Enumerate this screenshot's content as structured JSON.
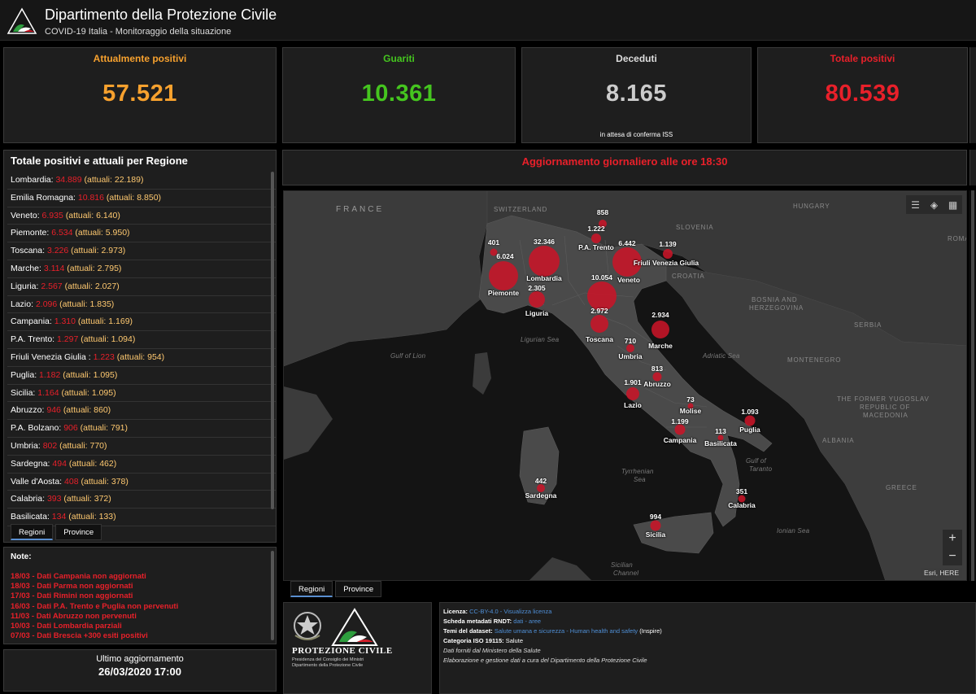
{
  "header": {
    "title": "Dipartimento della Protezione Civile",
    "subtitle": "COVID-19 Italia - Monitoraggio della situazione"
  },
  "kpis": [
    {
      "label": "Attualmente positivi",
      "value": "57.521",
      "note": "",
      "color": "#f7a12e"
    },
    {
      "label": "Guariti",
      "value": "10.361",
      "note": "",
      "color": "#45c51f"
    },
    {
      "label": "Deceduti",
      "value": "8.165",
      "note": "in attesa di conferma ISS",
      "color": "#cccccc"
    },
    {
      "label": "Totale positivi",
      "value": "80.539",
      "note": "",
      "color": "#e8202a"
    }
  ],
  "regions_panel": {
    "title": "Totale positivi e attuali per Regione",
    "rows": [
      {
        "name": "Lombardia:",
        "total": "34.889",
        "current": "(attuali: 22.189)"
      },
      {
        "name": "Emilia Romagna:",
        "total": "10.816",
        "current": "(attuali: 8.850)"
      },
      {
        "name": "Veneto:",
        "total": "6.935",
        "current": "(attuali: 6.140)"
      },
      {
        "name": "Piemonte:",
        "total": "6.534",
        "current": "(attuali: 5.950)"
      },
      {
        "name": "Toscana:",
        "total": "3.226",
        "current": "(attuali: 2.973)"
      },
      {
        "name": "Marche:",
        "total": "3.114",
        "current": "(attuali: 2.795)"
      },
      {
        "name": "Liguria:",
        "total": "2.567",
        "current": "(attuali: 2.027)"
      },
      {
        "name": "Lazio:",
        "total": "2.096",
        "current": "(attuali: 1.835)"
      },
      {
        "name": "Campania:",
        "total": "1.310",
        "current": "(attuali: 1.169)"
      },
      {
        "name": "P.A. Trento:",
        "total": "1.297",
        "current": "(attuali: 1.094)"
      },
      {
        "name": "Friuli Venezia Giulia :",
        "total": "1.223",
        "current": "(attuali: 954)"
      },
      {
        "name": "Puglia:",
        "total": "1.182",
        "current": "(attuali: 1.095)"
      },
      {
        "name": "Sicilia:",
        "total": "1.164",
        "current": "(attuali: 1.095)"
      },
      {
        "name": "Abruzzo:",
        "total": "946",
        "current": "(attuali: 860)"
      },
      {
        "name": "P.A. Bolzano:",
        "total": "906",
        "current": "(attuali: 791)"
      },
      {
        "name": "Umbria:",
        "total": "802",
        "current": "(attuali: 770)"
      },
      {
        "name": "Sardegna:",
        "total": "494",
        "current": "(attuali: 462)"
      },
      {
        "name": "Valle d'Aosta:",
        "total": "408",
        "current": "(attuali: 378)"
      },
      {
        "name": "Calabria:",
        "total": "393",
        "current": "(attuali: 372)"
      },
      {
        "name": "Basilicata:",
        "total": "134",
        "current": "(attuali: 133)"
      }
    ],
    "tabs": [
      "Regioni",
      "Province"
    ]
  },
  "notes": {
    "title": "Note:",
    "items": [
      "18/03 - Dati Campania non aggiornati",
      "18/03 - Dati Parma non aggiornati",
      "17/03 - Dati Rimini non aggiornati",
      "16/03 - Dati P.A. Trento e Puglia non pervenuti",
      "11/03 - Dati Abruzzo non pervenuti",
      "10/03 - Dati Lombardia parziali",
      "07/03 - Dati Brescia +300 esiti positivi"
    ]
  },
  "last_update": {
    "label": "Ultimo aggiornamento",
    "value": "26/03/2020 17:00"
  },
  "banner": {
    "text": "Aggiornamento giornaliero alle ore 18:30"
  },
  "map": {
    "tabs": [
      "Regioni",
      "Province"
    ],
    "attribution": "Esri, HERE",
    "zoom_in": "+",
    "zoom_out": "−",
    "geo_labels": [
      {
        "text": "FRANCE"
      },
      {
        "text": "SWITZERLAND"
      },
      {
        "text": "HUNGARY"
      },
      {
        "text": "SLOVENIA"
      },
      {
        "text": "CROATIA"
      },
      {
        "text": "BOSNIA AND"
      },
      {
        "text": "HERZEGOVINA"
      },
      {
        "text": "SERBIA"
      },
      {
        "text": "MONTENEGRO"
      },
      {
        "text": "THE FORMER YUGOSLAV"
      },
      {
        "text": "REPUBLIC OF"
      },
      {
        "text": "MACEDONIA"
      },
      {
        "text": "ALBANIA"
      },
      {
        "text": "GREECE"
      },
      {
        "text": "ROMA"
      },
      {
        "text": "Ligurian Sea"
      },
      {
        "text": "Gulf of Lion"
      },
      {
        "text": "Adriatic Sea"
      },
      {
        "text": "Tyrrhenian"
      },
      {
        "text": "Sea"
      },
      {
        "text": "Gulf of"
      },
      {
        "text": "Taranto"
      },
      {
        "text": "Ionian Sea"
      },
      {
        "text": "Sicilian"
      },
      {
        "text": "Channel"
      }
    ],
    "bubbles": [
      {
        "name": "",
        "value": "858"
      },
      {
        "name": "P.A. Trento",
        "value": "1.222"
      },
      {
        "name": "",
        "value": "401"
      },
      {
        "name": "Piemonte",
        "value": "6.024"
      },
      {
        "name": "Lombardia",
        "value": "32.346"
      },
      {
        "name": "Veneto",
        "value": "6.442"
      },
      {
        "name": "Friuli Venezia Giulia",
        "value": "1.139"
      },
      {
        "name": "Liguria",
        "value": "2.305"
      },
      {
        "name": "",
        "value": "10.054"
      },
      {
        "name": "Toscana",
        "value": "2.972"
      },
      {
        "name": "Marche",
        "value": "2.934"
      },
      {
        "name": "Umbria",
        "value": "710"
      },
      {
        "name": "Abruzzo",
        "value": "813"
      },
      {
        "name": "Lazio",
        "value": "1.901"
      },
      {
        "name": "Molise",
        "value": "73"
      },
      {
        "name": "Puglia",
        "value": "1.093"
      },
      {
        "name": "Campania",
        "value": "1.199"
      },
      {
        "name": "Basilicata",
        "value": "113"
      },
      {
        "name": "Sardegna",
        "value": "442"
      },
      {
        "name": "Calabria",
        "value": "351"
      },
      {
        "name": "Sicilia",
        "value": "994"
      }
    ]
  },
  "logos": {
    "title": "PROTEZIONE CIVILE",
    "subtitle1": "Presidenza del Consiglio dei Ministri",
    "subtitle2": "Dipartimento della Protezione Civile"
  },
  "license": {
    "licenza_label": "Licenza:",
    "licenza_value": "CC-BY-4.0",
    "licenza_sep": " - ",
    "licenza_link": "Visualizza licenza",
    "scheda_label": "Scheda metadati RNDT:",
    "scheda_dati": "dati",
    "scheda_sep": " - ",
    "scheda_aree": "aree",
    "temi_label": "Temi del dataset:",
    "temi_value": "Salute umana e sicurezza - Human health and safety",
    "temi_suffix": " (Inspire)",
    "iso_label": "Categoria ISO 19115:",
    "iso_value": "Salute",
    "line5": "Dati forniti dal Ministero della Salute",
    "line6": "Elaborazione e gestione dati a cura del Dipartimento della Protezione Civile"
  }
}
